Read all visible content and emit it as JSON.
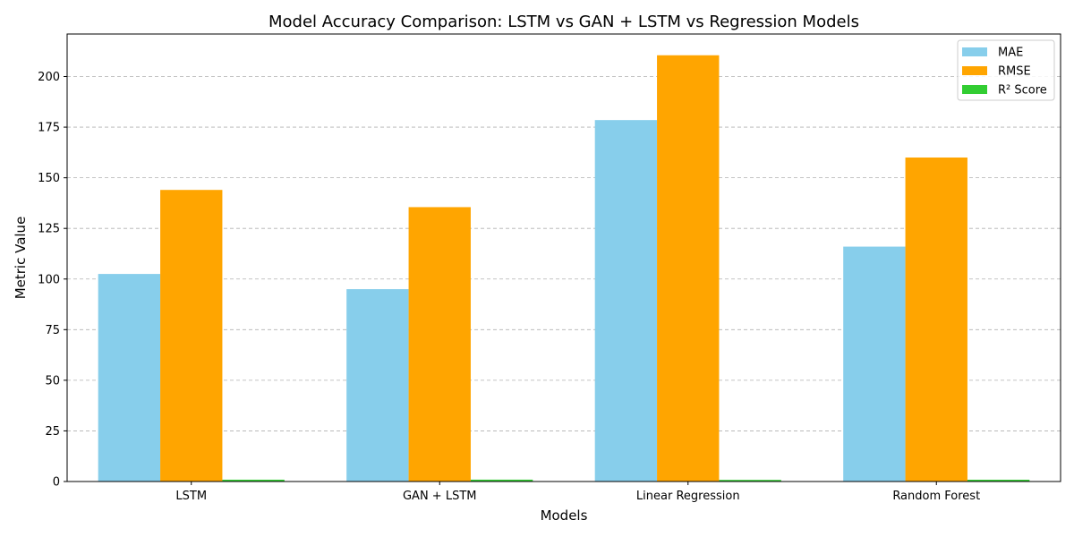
{
  "chart_data": {
    "type": "bar",
    "title": "Model Accuracy Comparison: LSTM vs GAN + LSTM vs Regression Models",
    "xlabel": "Models",
    "ylabel": "Metric Value",
    "categories": [
      "LSTM",
      "GAN + LSTM",
      "Linear Regression",
      "Random Forest"
    ],
    "series": [
      {
        "name": "MAE",
        "color": "#87CEEB",
        "values": [
          102.5,
          95.0,
          178.5,
          116.0
        ]
      },
      {
        "name": "RMSE",
        "color": "#FFA500",
        "values": [
          144.0,
          135.5,
          210.5,
          160.0
        ]
      },
      {
        "name": "R² Score",
        "color": "#32CD32",
        "values": [
          0.9,
          0.92,
          0.8,
          0.88
        ]
      }
    ],
    "ylim": [
      0,
      221
    ],
    "yticks": [
      0,
      25,
      50,
      75,
      100,
      125,
      150,
      175,
      200
    ],
    "grid": "y-dashed",
    "legend_position": "top-right"
  }
}
